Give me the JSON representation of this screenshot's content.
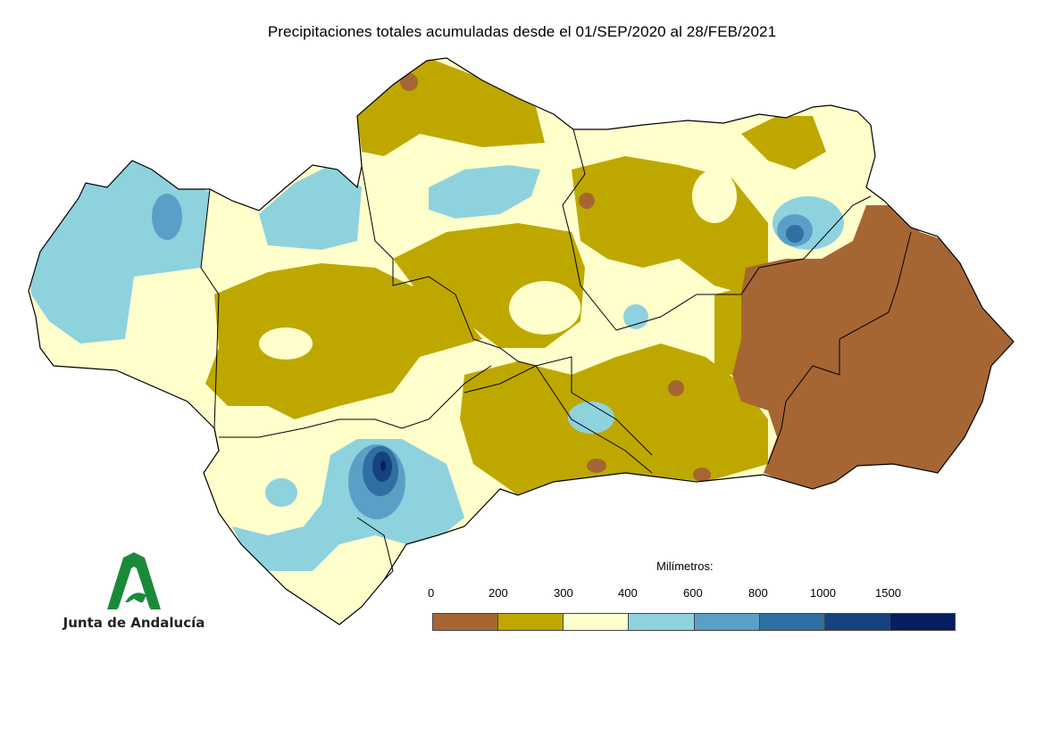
{
  "title": "Precipitaciones totales acumuladas desde el 01/SEP/2020 al 28/FEB/2021",
  "logo": {
    "text": "Junta de Andalucía",
    "icon": "junta-andalucia-arch-icon"
  },
  "legend": {
    "title": "Milímetros:",
    "labels": [
      "0",
      "200",
      "300",
      "400",
      "600",
      "800",
      "1000",
      "1500"
    ],
    "colors": [
      "#a66634",
      "#bea800",
      "#ffffcc",
      "#8ed2de",
      "#5aa0c6",
      "#2f6fa3",
      "#16427f",
      "#061f5e"
    ]
  },
  "colors": {
    "lt200": "#a66634",
    "r200_300": "#bea800",
    "r300_400": "#ffffcc",
    "r400_600": "#8ed2de",
    "r600_800": "#5aa0c6",
    "r800_1000": "#2f6fa3",
    "r1000_1500": "#16427f",
    "gt1500": "#061f5e",
    "borders": "#000000"
  }
}
